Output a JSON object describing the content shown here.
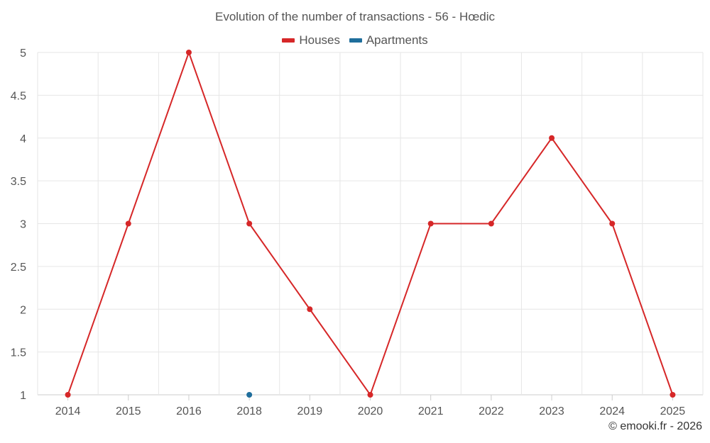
{
  "chart_data": {
    "type": "line",
    "title": "Evolution of the number of transactions - 56 - Hœdic",
    "xlabel": "",
    "ylabel": "",
    "categories": [
      "2014",
      "2015",
      "2016",
      "2018",
      "2019",
      "2020",
      "2021",
      "2022",
      "2023",
      "2024",
      "2025"
    ],
    "ylim": [
      1,
      5
    ],
    "yticks": [
      "1",
      "1.5",
      "2",
      "2.5",
      "3",
      "3.5",
      "4",
      "4.5",
      "5"
    ],
    "grid": true,
    "legend_position": "top-center",
    "series": [
      {
        "name": "Houses",
        "color": "#d62728",
        "values": [
          1,
          3,
          5,
          3,
          2,
          1,
          3,
          3,
          4,
          3,
          1
        ]
      },
      {
        "name": "Apartments",
        "color": "#1f6e9c",
        "values": [
          null,
          null,
          null,
          1,
          null,
          null,
          null,
          null,
          null,
          null,
          null
        ]
      }
    ]
  },
  "credit": "© emooki.fr - 2026"
}
